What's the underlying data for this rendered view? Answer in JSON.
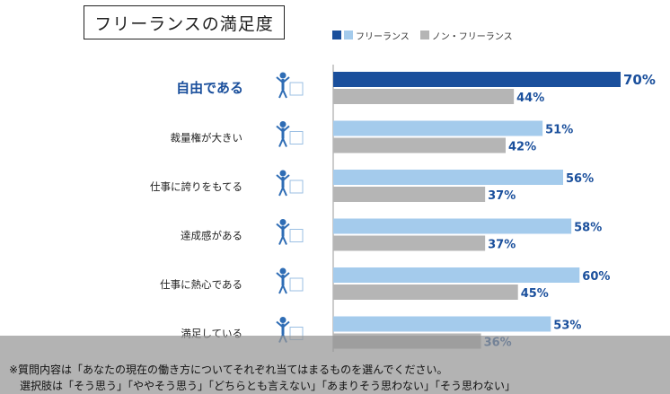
{
  "title": "フリーランスの満足度",
  "legend": [
    {
      "name": "フリーランス",
      "colors": [
        "#1a4f9c",
        "#a4cbec"
      ]
    },
    {
      "name": "ノン・フリーランス",
      "colors": [
        "#b5b5b5"
      ]
    }
  ],
  "chart_data": {
    "type": "bar",
    "orientation": "horizontal",
    "unit": "%",
    "categories": [
      "自由である",
      "裁量権が大きい",
      "仕事に誇りをもてる",
      "達成感がある",
      "仕事に熱心である",
      "満足している"
    ],
    "series": [
      {
        "name": "フリーランス",
        "values": [
          70,
          51,
          56,
          58,
          60,
          53
        ],
        "color": "#a4cbec",
        "highlight_color": "#1a4f9c"
      },
      {
        "name": "ノン・フリーランス",
        "values": [
          44,
          42,
          37,
          37,
          45,
          36
        ],
        "color": "#b5b5b5"
      }
    ],
    "labels": [
      "70%",
      "51%",
      "56%",
      "58%",
      "60%",
      "53%",
      "44%",
      "42%",
      "37%",
      "37%",
      "45%",
      "36%"
    ],
    "highlight_category": "自由である",
    "label_color": "#1a4f9c",
    "xlim": [
      0,
      70
    ],
    "grid": false,
    "legend_position": "top"
  },
  "icons": [
    "person-jumping-icon",
    "person-lifting-icon",
    "person-proud-icon",
    "person-cheering-icon",
    "person-at-desk-icon",
    "person-celebrating-icon"
  ],
  "footer": {
    "line1": "※質問内容は「あなたの現在の働き方についてそれぞれ当てはまるものを選んでください。",
    "line2": "選択肢は「そう思う」「ややそう思う」「どちらとも言えない」「あまりそう思わない」「そう思わない」"
  }
}
